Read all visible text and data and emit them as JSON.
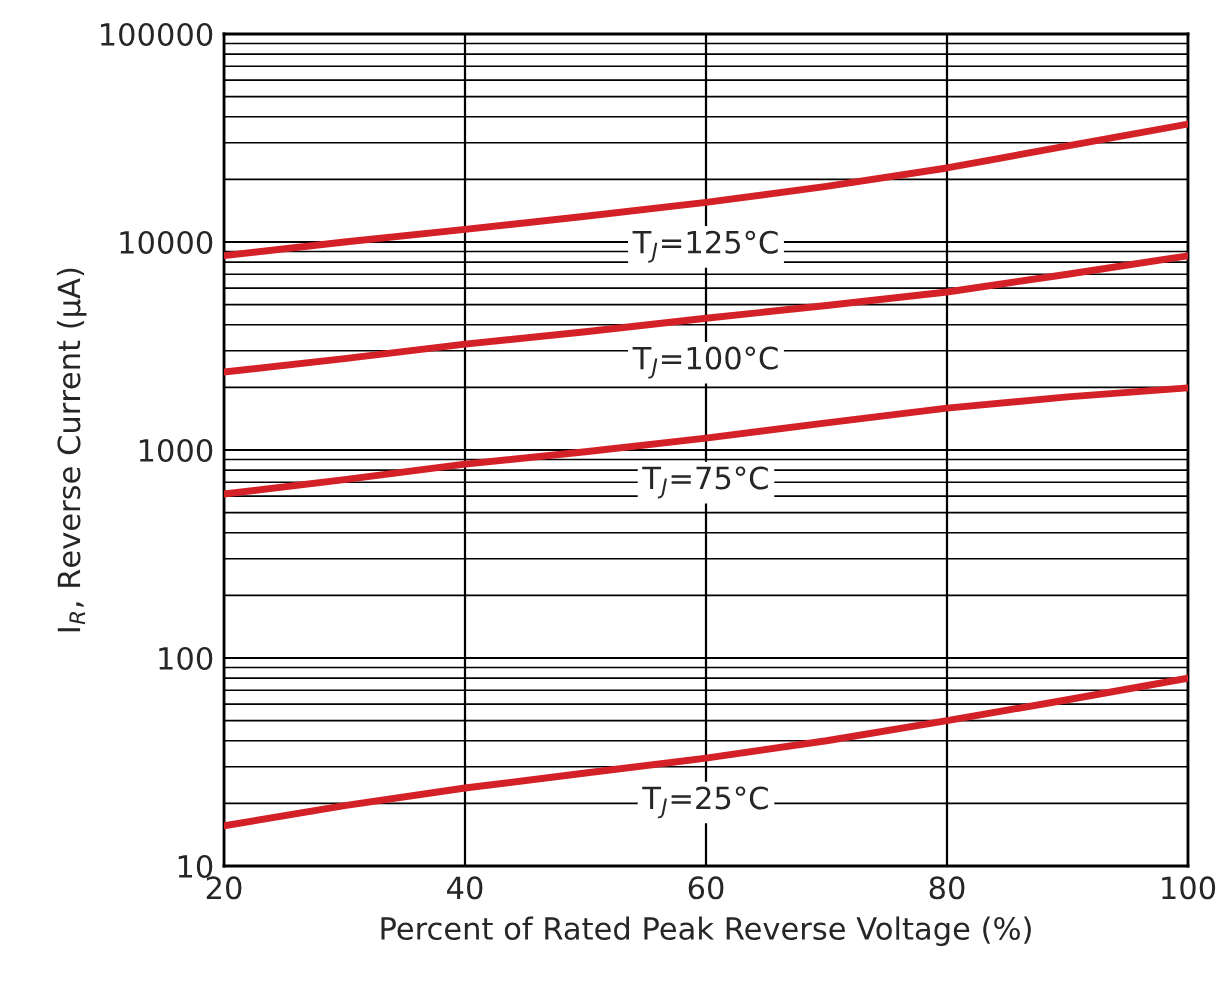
{
  "chart_data": {
    "type": "line",
    "xlabel": "Percent of Rated Peak Reverse Voltage (%)",
    "ylabel": "I$_{R}$, Reverse Current (µA)",
    "x": [
      20,
      30,
      40,
      50,
      60,
      70,
      80,
      90,
      100
    ],
    "series": [
      {
        "name": "T$_{J}$=125°C",
        "color": "#d42027",
        "values": [
          8600,
          10000,
          11500,
          13300,
          15500,
          18500,
          22700,
          29000,
          36900
        ]
      },
      {
        "name": "T$_{J}$=100°C",
        "color": "#d42027",
        "values": [
          2370,
          2750,
          3230,
          3700,
          4300,
          4950,
          5750,
          7000,
          8580
        ]
      },
      {
        "name": "T$_{J}$=75°C",
        "color": "#d42027",
        "values": [
          614,
          720,
          855,
          980,
          1140,
          1350,
          1590,
          1800,
          1990
        ]
      },
      {
        "name": "T$_{J}$=25°C",
        "color": "#d42027",
        "values": [
          15.6,
          19.5,
          23.7,
          28,
          33,
          40,
          50,
          63,
          80
        ]
      }
    ],
    "xlim": [
      20,
      100
    ],
    "xticks": [
      20,
      40,
      60,
      80,
      100
    ],
    "log": "y",
    "ylim": [
      10,
      100000
    ],
    "yticks": [
      10,
      100,
      1000,
      10000,
      100000
    ],
    "grid": true,
    "line_style": "solid",
    "marker": "none"
  }
}
